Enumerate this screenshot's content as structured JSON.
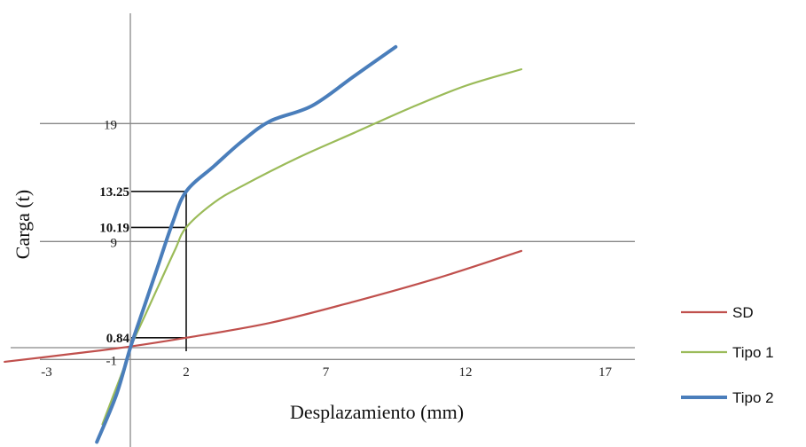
{
  "chart_data": {
    "type": "line",
    "xlabel": "Desplazamiento (mm)",
    "ylabel": "Carga (t)",
    "xlim": [
      -4.5,
      18
    ],
    "ylim": [
      -8,
      27
    ],
    "x_ticks": [
      -3,
      2,
      7,
      12,
      17
    ],
    "y_ticks": [
      -1,
      9,
      19
    ],
    "legend_position": "right-bottom",
    "series": [
      {
        "name": "SD",
        "color": "#c0504d",
        "points": [
          [
            -4.5,
            -1.2
          ],
          [
            -2,
            -0.5
          ],
          [
            0,
            0.1
          ],
          [
            2,
            0.84
          ],
          [
            5,
            2.1
          ],
          [
            8,
            3.9
          ],
          [
            11,
            5.9
          ],
          [
            14,
            8.2
          ]
        ]
      },
      {
        "name": "Tipo 1",
        "color": "#9bbb59",
        "points": [
          [
            -1,
            -6.5
          ],
          [
            -0.6,
            -4
          ],
          [
            -0.2,
            -1.5
          ],
          [
            0,
            0
          ],
          [
            0.5,
            2.6
          ],
          [
            1,
            5.2
          ],
          [
            1.6,
            8.3
          ],
          [
            2,
            10.19
          ],
          [
            3,
            12.3
          ],
          [
            4,
            13.7
          ],
          [
            6,
            16.1
          ],
          [
            8,
            18.2
          ],
          [
            10,
            20.3
          ],
          [
            12,
            22.2
          ],
          [
            14,
            23.6
          ]
        ]
      },
      {
        "name": "Tipo 2",
        "color": "#4a7ebb",
        "points": [
          [
            -1.2,
            -8
          ],
          [
            -0.5,
            -4
          ],
          [
            0,
            0
          ],
          [
            0.5,
            3.5
          ],
          [
            1,
            7
          ],
          [
            1.5,
            10.5
          ],
          [
            2,
            13.25
          ],
          [
            3,
            15.4
          ],
          [
            4,
            17.5
          ],
          [
            5,
            19.2
          ],
          [
            6.5,
            20.5
          ],
          [
            8,
            23
          ],
          [
            9.5,
            25.5
          ]
        ]
      }
    ],
    "annotations": [
      {
        "label": "13.25",
        "x": 2,
        "y": 13.25
      },
      {
        "label": "10.19",
        "x": 2,
        "y": 10.19
      },
      {
        "label": "0.84",
        "x": 2,
        "y": 0.84
      }
    ]
  }
}
